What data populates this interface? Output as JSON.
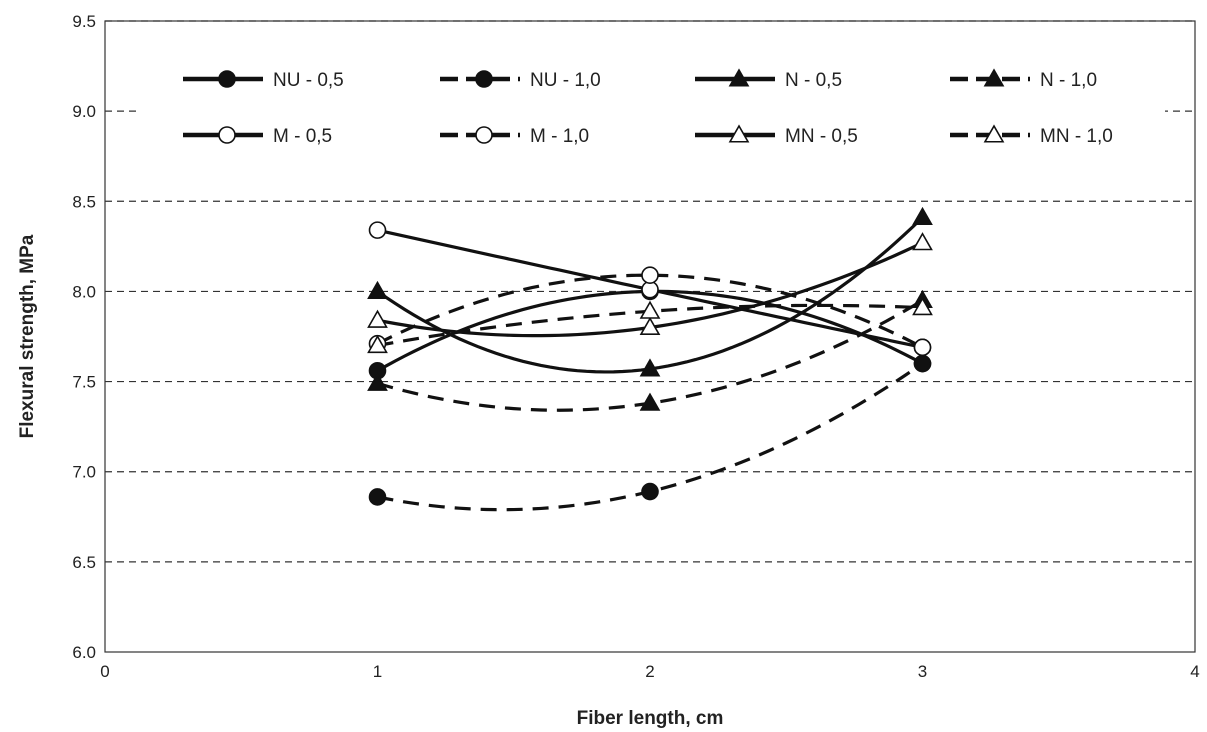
{
  "chart_data": {
    "type": "line",
    "title": "",
    "xlabel": "Fiber length, cm",
    "ylabel": "Flexural strength, MPa",
    "xlim": [
      0,
      4
    ],
    "ylim": [
      6.0,
      9.5
    ],
    "xticks": [
      0,
      1,
      2,
      3,
      4
    ],
    "yticks": [
      6.0,
      6.5,
      7.0,
      7.5,
      8.0,
      8.5,
      9.0,
      9.5
    ],
    "xtick_labels": [
      "0",
      "1",
      "2",
      "3",
      "4"
    ],
    "ytick_labels": [
      "6.0",
      "6.5",
      "7.0",
      "7.5",
      "8.0",
      "8.5",
      "9.0",
      "9.5"
    ],
    "grid": "horizontal dashed",
    "legend_position": "top",
    "x": [
      1,
      2,
      3
    ],
    "series": [
      {
        "name": "NU - 0,5",
        "values": [
          7.56,
          8.0,
          7.6
        ],
        "marker": "circle-filled",
        "line": "solid"
      },
      {
        "name": "NU - 1,0",
        "values": [
          6.86,
          6.89,
          7.6
        ],
        "marker": "circle-filled",
        "line": "dashed"
      },
      {
        "name": "N - 0,5",
        "values": [
          8.0,
          7.57,
          8.41
        ],
        "marker": "triangle-filled",
        "line": "solid"
      },
      {
        "name": "N - 1,0",
        "values": [
          7.49,
          7.38,
          7.95
        ],
        "marker": "triangle-filled",
        "line": "dashed"
      },
      {
        "name": "M - 0,5",
        "values": [
          8.34,
          8.01,
          7.69
        ],
        "marker": "circle-open",
        "line": "solid"
      },
      {
        "name": "M - 1,0",
        "values": [
          7.71,
          8.09,
          7.69
        ],
        "marker": "circle-open",
        "line": "dashed"
      },
      {
        "name": "MN - 0,5",
        "values": [
          7.84,
          7.8,
          8.27
        ],
        "marker": "triangle-open",
        "line": "solid"
      },
      {
        "name": "MN - 1,0",
        "values": [
          7.7,
          7.89,
          7.91
        ],
        "marker": "triangle-open",
        "line": "dashed"
      }
    ]
  }
}
